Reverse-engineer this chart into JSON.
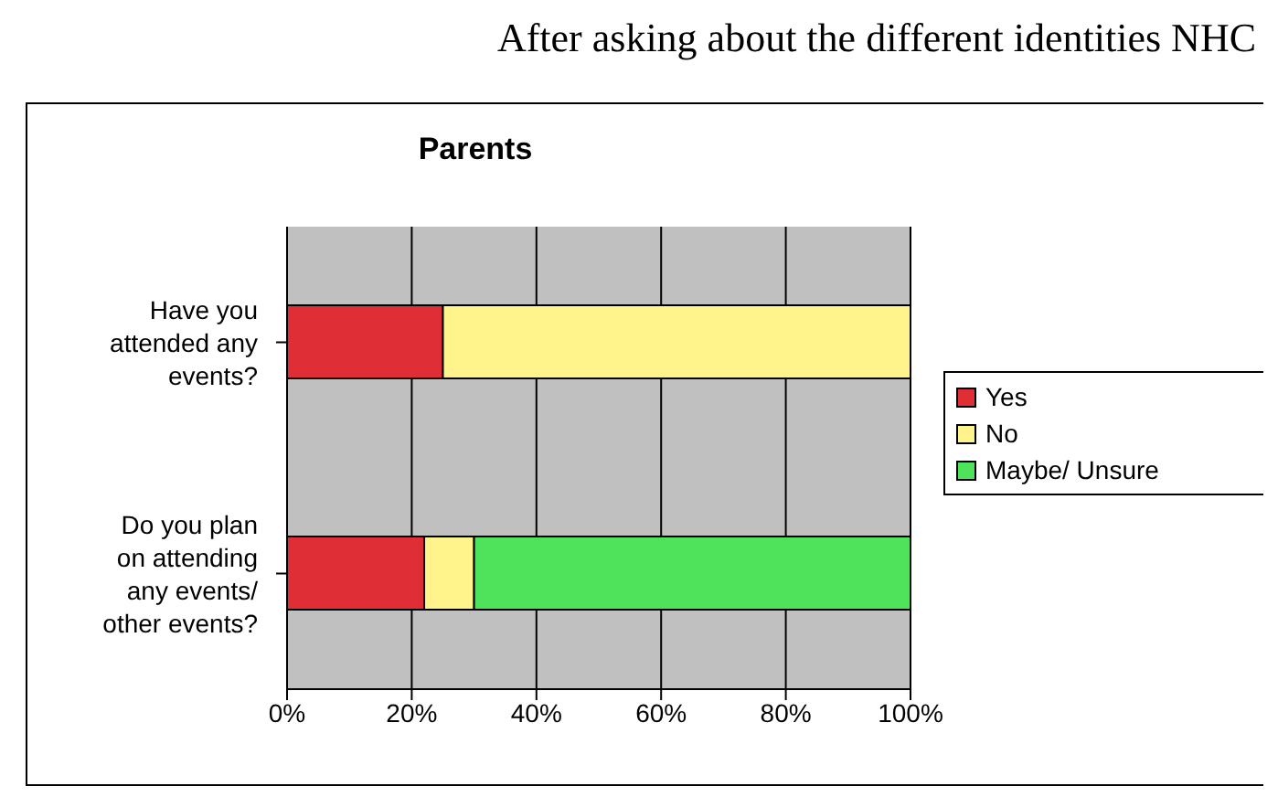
{
  "chart_data": {
    "type": "bar",
    "orientation": "horizontal",
    "stacked": true,
    "title": "Parents",
    "annotations": [
      "After asking about the different identities NHC"
    ],
    "categories": [
      "Have you attended any events?",
      "Do you plan on attending any events/ other events?"
    ],
    "series": [
      {
        "name": "Yes",
        "color": "#df2e36",
        "values": [
          25,
          22
        ]
      },
      {
        "name": "No",
        "color": "#fff38c",
        "values": [
          75,
          8
        ]
      },
      {
        "name": "Maybe/ Unsure",
        "color": "#4fe35b",
        "values": [
          null,
          70
        ]
      }
    ],
    "xlim": [
      0,
      100
    ],
    "xticks": [
      {
        "value": 0,
        "label": "0%"
      },
      {
        "value": 20,
        "label": "20%"
      },
      {
        "value": 40,
        "label": "40%"
      },
      {
        "value": 60,
        "label": "60%"
      },
      {
        "value": 80,
        "label": "80%"
      },
      {
        "value": 100,
        "label": "100%"
      }
    ],
    "grid": "x",
    "legend": "right"
  }
}
